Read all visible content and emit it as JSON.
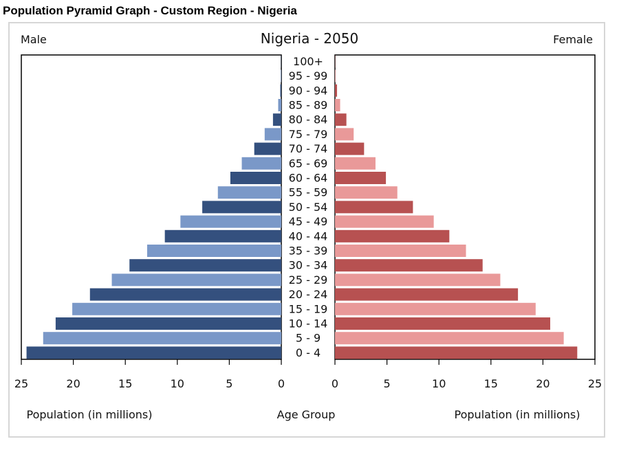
{
  "page": {
    "heading": "Population Pyramid Graph - Custom Region - Nigeria"
  },
  "chart_data": {
    "type": "population-pyramid",
    "title": "Nigeria - 2050",
    "left_label": "Male",
    "right_label": "Female",
    "center_axis_label": "Age Group",
    "xlabel_left": "Population (in millions)",
    "xlabel_right": "Population (in millions)",
    "x_ticks": [
      "25",
      "20",
      "15",
      "10",
      "5",
      "0"
    ],
    "x_ticks_right": [
      "0",
      "5",
      "10",
      "15",
      "20",
      "25"
    ],
    "xlim": [
      0,
      25
    ],
    "categories": [
      "0 - 4",
      "5 - 9",
      "10 - 14",
      "15 - 19",
      "20 - 24",
      "25 - 29",
      "30 - 34",
      "35 - 39",
      "40 - 44",
      "45 - 49",
      "50 - 54",
      "55 - 59",
      "60 - 64",
      "65 - 69",
      "70 - 74",
      "75 - 79",
      "80 - 84",
      "85 - 89",
      "90 - 94",
      "95 - 99",
      "100+"
    ],
    "series": [
      {
        "name": "Male",
        "values": [
          24.5,
          22.9,
          21.7,
          20.1,
          18.4,
          16.3,
          14.6,
          12.9,
          11.2,
          9.7,
          7.6,
          6.1,
          4.9,
          3.8,
          2.6,
          1.6,
          0.8,
          0.3,
          0.1,
          0.05,
          0.02
        ]
      },
      {
        "name": "Female",
        "values": [
          23.3,
          22.0,
          20.7,
          19.3,
          17.6,
          15.9,
          14.2,
          12.6,
          11.0,
          9.5,
          7.5,
          6.0,
          4.9,
          3.9,
          2.8,
          1.8,
          1.1,
          0.5,
          0.2,
          0.05,
          0.02
        ]
      }
    ],
    "colors": {
      "male_dark": "#34507e",
      "male_light": "#7a98c8",
      "female_dark": "#b75151",
      "female_light": "#e99999"
    }
  }
}
